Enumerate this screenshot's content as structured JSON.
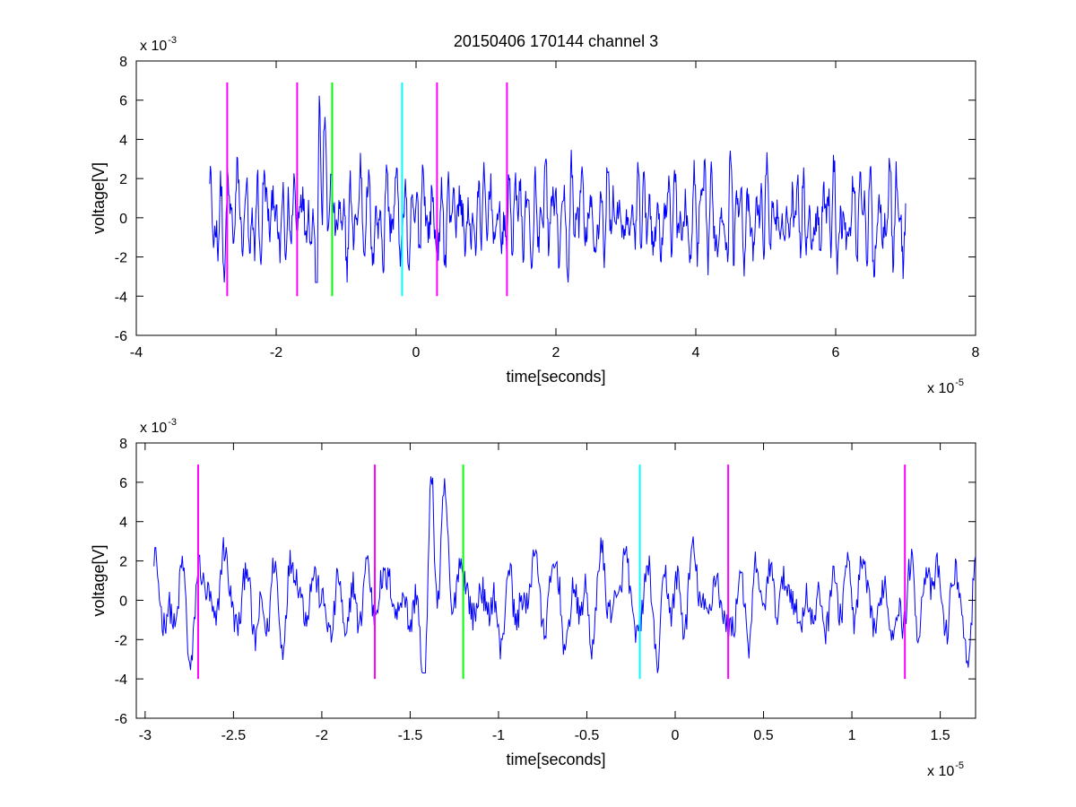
{
  "figure": {
    "title": "20150406 170144 channel 3"
  },
  "colors": {
    "signal": "#0000ff",
    "magenta": "#ff00ff",
    "green": "#00ff00",
    "cyan": "#00ffff",
    "axes": "#000000",
    "background": "#ffffff"
  },
  "chart_data": [
    {
      "type": "line",
      "title": "20150406 170144 channel 3",
      "xlabel": "time[seconds]",
      "ylabel": "voltage[V]",
      "x_multiplier": {
        "base": "x 10",
        "exponent": "-5"
      },
      "y_multiplier": {
        "base": "x 10",
        "exponent": "-3"
      },
      "xlim": [
        -4,
        8
      ],
      "ylim": [
        -6,
        8
      ],
      "x_ticks": [
        -4,
        -2,
        0,
        2,
        4,
        6,
        8
      ],
      "x_tick_labels": [
        "-4",
        "-2",
        "0",
        "2",
        "4",
        "6",
        "8"
      ],
      "y_ticks": [
        -6,
        -4,
        -2,
        0,
        2,
        4,
        6,
        8
      ],
      "y_tick_labels": [
        "-6",
        "-4",
        "-2",
        "0",
        "2",
        "4",
        "6",
        "8"
      ],
      "grid": false,
      "signal": {
        "x_start": -2.95,
        "x_end": 7.0,
        "y_min": -3.3,
        "y_max": 6.3,
        "color": "#0000ff"
      },
      "markers": [
        {
          "x": -2.7,
          "y_from": -4,
          "y_to": 6.9,
          "color": "#ff00ff"
        },
        {
          "x": -1.7,
          "y_from": -4,
          "y_to": 6.9,
          "color": "#ff00ff"
        },
        {
          "x": -1.2,
          "y_from": -4,
          "y_to": 6.9,
          "color": "#00ff00"
        },
        {
          "x": -0.2,
          "y_from": -4,
          "y_to": 6.9,
          "color": "#00ffff"
        },
        {
          "x": 0.3,
          "y_from": -4,
          "y_to": 6.9,
          "color": "#ff00ff"
        },
        {
          "x": 1.3,
          "y_from": -4,
          "y_to": 6.9,
          "color": "#ff00ff"
        }
      ]
    },
    {
      "type": "line",
      "xlabel": "time[seconds]",
      "ylabel": "voltage[V]",
      "x_multiplier": {
        "base": "x 10",
        "exponent": "-5"
      },
      "y_multiplier": {
        "base": "x 10",
        "exponent": "-3"
      },
      "xlim": [
        -3.05,
        1.7
      ],
      "ylim": [
        -6,
        8
      ],
      "x_ticks": [
        -3,
        -2.5,
        -2,
        -1.5,
        -1,
        -0.5,
        0,
        0.5,
        1,
        1.5
      ],
      "x_tick_labels": [
        "-3",
        "-2.5",
        "-2",
        "-1.5",
        "-1",
        "-0.5",
        "0",
        "0.5",
        "1",
        "1.5"
      ],
      "y_ticks": [
        -6,
        -4,
        -2,
        0,
        2,
        4,
        6,
        8
      ],
      "y_tick_labels": [
        "-6",
        "-4",
        "-2",
        "0",
        "2",
        "4",
        "6",
        "8"
      ],
      "grid": false,
      "signal": {
        "x_start": -2.95,
        "x_end": 1.7,
        "y_min": -3.7,
        "y_max": 6.3,
        "color": "#0000ff"
      },
      "markers": [
        {
          "x": -2.7,
          "y_from": -4,
          "y_to": 6.9,
          "color": "#ff00ff"
        },
        {
          "x": -1.7,
          "y_from": -4,
          "y_to": 6.9,
          "color": "#ff00ff"
        },
        {
          "x": -1.2,
          "y_from": -4,
          "y_to": 6.9,
          "color": "#00ff00"
        },
        {
          "x": -0.2,
          "y_from": -4,
          "y_to": 6.9,
          "color": "#00ffff"
        },
        {
          "x": 0.3,
          "y_from": -4,
          "y_to": 6.9,
          "color": "#ff00ff"
        },
        {
          "x": 1.3,
          "y_from": -4,
          "y_to": 6.9,
          "color": "#ff00ff"
        }
      ]
    }
  ]
}
